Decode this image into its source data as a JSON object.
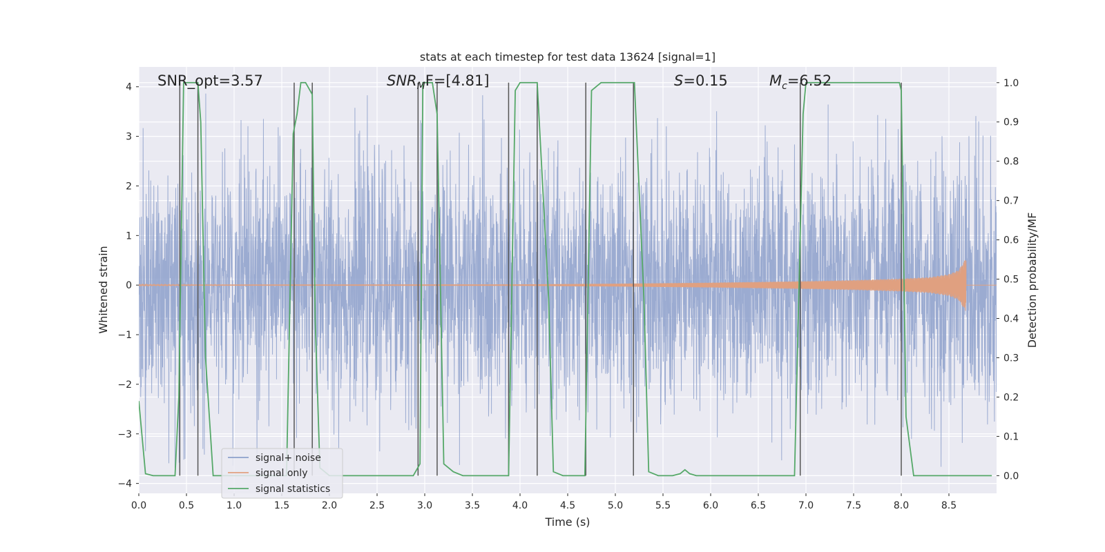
{
  "chart_data": {
    "type": "line",
    "title": "stats at each timestep for test data 13624 [signal=1]",
    "xlabel": "Time (s)",
    "ylabel": "Whitened strain",
    "ylabel_right": "Detection probability/MF",
    "xlim": [
      0.0,
      9.0
    ],
    "ylim": [
      -4.2,
      4.4
    ],
    "ylim_right": [
      -0.045,
      1.04
    ],
    "x_ticks": [
      "0.0",
      "0.5",
      "1.0",
      "1.5",
      "2.0",
      "2.5",
      "3.0",
      "3.5",
      "4.0",
      "4.5",
      "5.0",
      "5.5",
      "6.0",
      "6.5",
      "7.0",
      "7.5",
      "8.0",
      "8.5"
    ],
    "x_tick_values": [
      0.0,
      0.5,
      1.0,
      1.5,
      2.0,
      2.5,
      3.0,
      3.5,
      4.0,
      4.5,
      5.0,
      5.5,
      6.0,
      6.5,
      7.0,
      7.5,
      8.0,
      8.5
    ],
    "y_ticks": [
      "4",
      "3",
      "2",
      "1",
      "0",
      "−1",
      "−2",
      "−3",
      "−4"
    ],
    "y_tick_values": [
      4,
      3,
      2,
      1,
      0,
      -1,
      -2,
      -3,
      -4
    ],
    "y_right_ticks": [
      "1.0",
      "0.9",
      "0.8",
      "0.7",
      "0.6",
      "0.5",
      "0.4",
      "0.3",
      "0.2",
      "0.1",
      "0.0"
    ],
    "y_right_tick_values": [
      1.0,
      0.9,
      0.8,
      0.7,
      0.6,
      0.5,
      0.4,
      0.3,
      0.2,
      0.1,
      0.0
    ],
    "grid": true,
    "legend_position": "lower-left",
    "annotations": {
      "snr_opt": "SNR_opt=3.57",
      "snr_mf_main": "SNR",
      "snr_mf_sub": "M",
      "snr_mf_tail": "F=[4.81]",
      "s_main": "S",
      "s_tail": "=0.15",
      "mc_main": "M",
      "mc_sub": "c",
      "mc_tail": "=6.52"
    },
    "series": [
      {
        "name": "signal+ noise",
        "axis": "left",
        "color": "#8da0cb",
        "style": "noise",
        "amplitude_envelope": {
          "typical": 1.6,
          "peak": 4.0,
          "x_range": [
            0.0,
            9.0
          ]
        }
      },
      {
        "name": "signal only",
        "axis": "left",
        "color": "#e0a080",
        "style": "chirp",
        "envelope": {
          "x": [
            0.0,
            4.0,
            5.0,
            6.0,
            7.0,
            7.5,
            8.0,
            8.3,
            8.5,
            8.6,
            8.65,
            8.68
          ],
          "amp": [
            0.01,
            0.015,
            0.03,
            0.05,
            0.08,
            0.1,
            0.13,
            0.16,
            0.22,
            0.3,
            0.45,
            0.55
          ]
        }
      },
      {
        "name": "signal statistics",
        "axis": "right",
        "color": "#55a868",
        "x": [
          0.0,
          0.07,
          0.15,
          0.38,
          0.42,
          0.47,
          0.62,
          0.65,
          0.7,
          0.78,
          1.55,
          1.62,
          1.66,
          1.7,
          1.75,
          1.82,
          1.85,
          1.9,
          2.0,
          2.88,
          2.95,
          2.98,
          3.03,
          3.08,
          3.13,
          3.2,
          3.3,
          3.4,
          3.88,
          3.95,
          4.0,
          4.05,
          4.18,
          4.3,
          4.35,
          4.45,
          4.68,
          4.75,
          4.8,
          4.85,
          5.0,
          5.2,
          5.3,
          5.35,
          5.45,
          5.6,
          5.68,
          5.73,
          5.78,
          5.85,
          6.0,
          6.88,
          6.97,
          7.0,
          7.05,
          7.5,
          7.98,
          8.0,
          8.05,
          8.13,
          8.3,
          8.95
        ],
        "values": [
          0.19,
          0.005,
          0.0,
          0.0,
          0.2,
          1.0,
          1.0,
          0.9,
          0.3,
          0.0,
          0.0,
          0.87,
          0.92,
          1.0,
          1.0,
          0.97,
          0.4,
          0.02,
          0.0,
          0.0,
          0.03,
          1.0,
          1.0,
          1.0,
          0.92,
          0.03,
          0.01,
          0.0,
          0.0,
          0.98,
          1.0,
          1.0,
          1.0,
          0.45,
          0.01,
          0.0,
          0.0,
          0.98,
          0.99,
          1.0,
          1.0,
          1.0,
          0.45,
          0.01,
          0.0,
          0.0,
          0.005,
          0.015,
          0.005,
          0.0,
          0.0,
          0.0,
          0.92,
          1.0,
          1.0,
          1.0,
          1.0,
          0.98,
          0.15,
          0.0,
          0.0,
          0.0
        ]
      }
    ],
    "vertical_markers": {
      "color": "#555555",
      "x": [
        0.43,
        0.62,
        1.63,
        1.82,
        2.93,
        3.13,
        3.88,
        4.18,
        4.69,
        5.19,
        6.94,
        8.0
      ]
    }
  }
}
